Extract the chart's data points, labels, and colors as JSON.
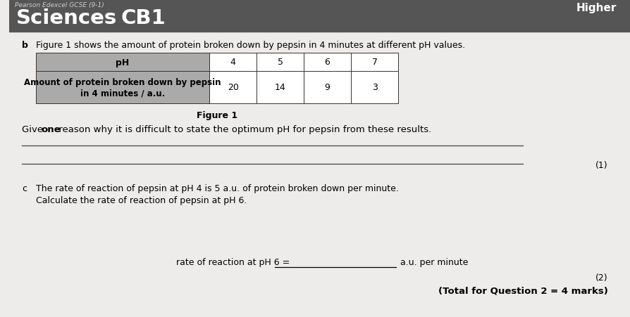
{
  "header_subtext": "Pearson Edexcel GCSE (9-1)",
  "sciences_text": "Sciences",
  "cb1_text": "CB1",
  "higher_text": "Higher",
  "bg_color": "#edecea",
  "header_bg": "#555555",
  "question_b_text": "Figure 1 shows the amount of protein broken down by pepsin in 4 minutes at different pH values.",
  "b_label": "b",
  "figure_caption": "Figure 1",
  "table": {
    "col_headers": [
      "4",
      "5",
      "6",
      "7"
    ],
    "row1_label": "pH",
    "row2_label": "Amount of protein broken down by pepsin\nin 4 minutes / a.u.",
    "values": [
      "20",
      "14",
      "9",
      "3"
    ],
    "label_bg": "#aaaaaa",
    "cell_bg": "#ffffff",
    "border_color": "#333333"
  },
  "give_prefix": "Give ",
  "give_bold": "one",
  "give_suffix": " reason why it is difficult to state the optimum pH for pepsin from these results.",
  "mark_1": "(1)",
  "question_c_label": "c",
  "question_c_text1": "The rate of reaction of pepsin at pH 4 is 5 a.u. of protein broken down per minute.",
  "question_c_text2": "Calculate the rate of reaction of pepsin at pH 6.",
  "rate_label": "rate of reaction at pH 6 = ",
  "rate_suffix": "a.u. per minute",
  "mark_2": "(2)",
  "total_marks": "(Total for Question 2 = 4 marks)"
}
